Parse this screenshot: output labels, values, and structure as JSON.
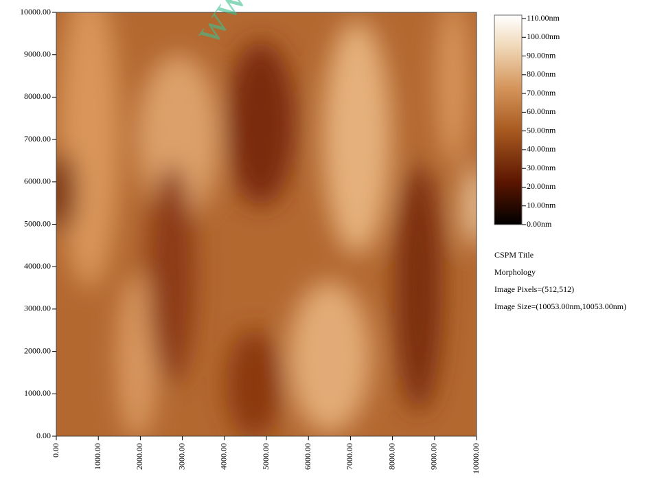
{
  "chart_data": {
    "type": "heatmap",
    "watermark": "www.",
    "xlim": [
      0,
      10000
    ],
    "ylim": [
      0,
      10000
    ],
    "xticks": [
      {
        "value": 0,
        "label": "0.00"
      },
      {
        "value": 1000,
        "label": "1000.00"
      },
      {
        "value": 2000,
        "label": "2000.00"
      },
      {
        "value": 3000,
        "label": "3000.00"
      },
      {
        "value": 4000,
        "label": "4000.00"
      },
      {
        "value": 5000,
        "label": "5000.00"
      },
      {
        "value": 6000,
        "label": "6000.00"
      },
      {
        "value": 7000,
        "label": "7000.00"
      },
      {
        "value": 8000,
        "label": "8000.00"
      },
      {
        "value": 9000,
        "label": "9000.00"
      },
      {
        "value": 10000,
        "label": "10000.00"
      }
    ],
    "yticks": [
      {
        "value": 0,
        "label": "0.00"
      },
      {
        "value": 1000,
        "label": "1000.00"
      },
      {
        "value": 2000,
        "label": "2000.00"
      },
      {
        "value": 3000,
        "label": "3000.00"
      },
      {
        "value": 4000,
        "label": "4000.00"
      },
      {
        "value": 5000,
        "label": "5000.00"
      },
      {
        "value": 6000,
        "label": "6000.00"
      },
      {
        "value": 7000,
        "label": "7000.00"
      },
      {
        "value": 8000,
        "label": "8000.00"
      },
      {
        "value": 9000,
        "label": "9000.00"
      },
      {
        "value": 10000,
        "label": "10000.00"
      }
    ],
    "colorbar": {
      "lim": [
        0,
        110
      ],
      "ticks": [
        {
          "value": 0,
          "label": "0.00nm"
        },
        {
          "value": 10,
          "label": "10.00nm"
        },
        {
          "value": 20,
          "label": "20.00nm"
        },
        {
          "value": 30,
          "label": "30.00nm"
        },
        {
          "value": 40,
          "label": "40.00nm"
        },
        {
          "value": 50,
          "label": "50.00nm"
        },
        {
          "value": 60,
          "label": "60.00nm"
        },
        {
          "value": 70,
          "label": "70.00nm"
        },
        {
          "value": 80,
          "label": "80.00nm"
        },
        {
          "value": 90,
          "label": "90.00nm"
        },
        {
          "value": 100,
          "label": "100.00nm"
        },
        {
          "value": 110,
          "label": "110.00nm"
        }
      ]
    },
    "info": [
      "CSPM Title",
      "Morphology",
      "Image Pixels=(512,512)",
      "Image Size=(10053.00nm,10053.00nm)"
    ]
  }
}
